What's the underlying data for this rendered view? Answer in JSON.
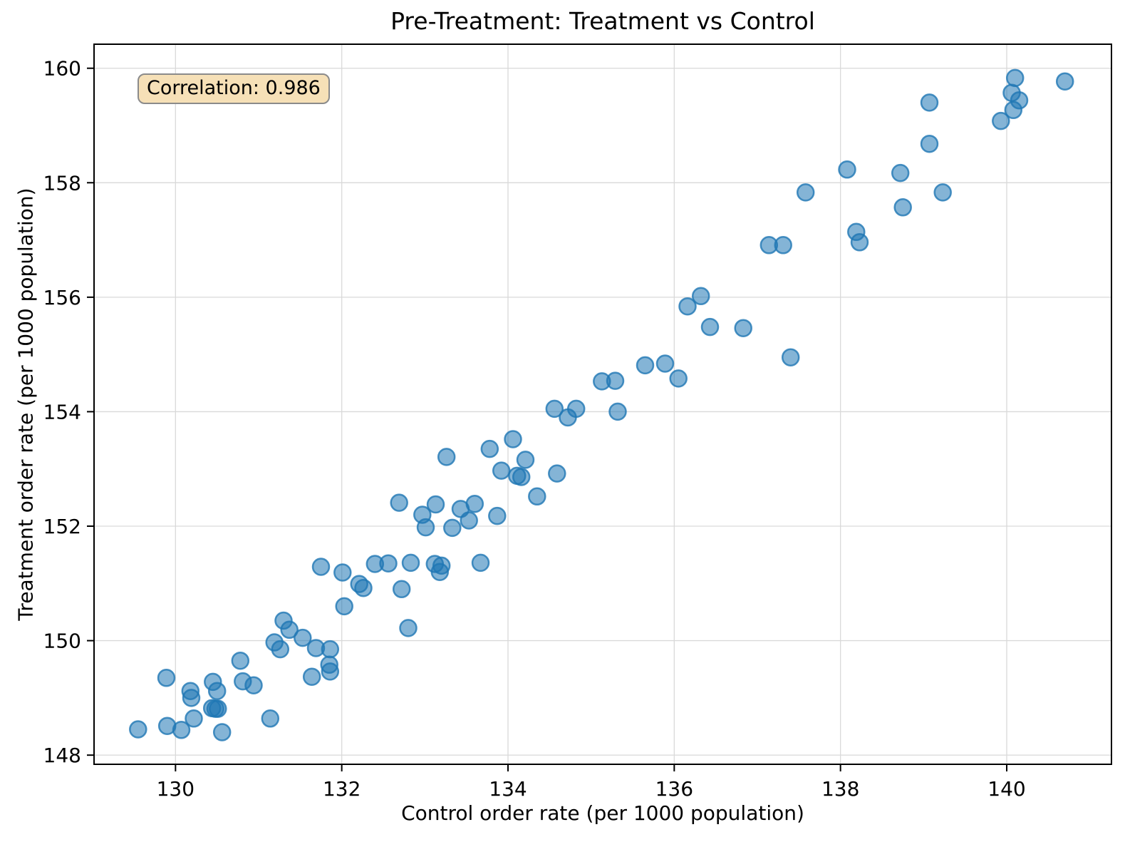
{
  "chart_data": {
    "type": "scatter",
    "title": "Pre-Treatment: Treatment vs Control",
    "xlabel": "Control order rate (per 1000 population)",
    "ylabel": "Treatment order rate (per 1000 population)",
    "xlim": [
      129.02,
      141.26
    ],
    "ylim": [
      147.84,
      160.42
    ],
    "xticks": [
      130,
      132,
      134,
      136,
      138,
      140
    ],
    "yticks": [
      148,
      150,
      152,
      154,
      156,
      158,
      160
    ],
    "grid": true,
    "legend": null,
    "annotation": {
      "text": "Correlation: 0.986",
      "value": 0.986
    },
    "style": {
      "point_color": "#1f77b4",
      "point_fill_opacity": 0.55,
      "point_edge_opacity": 0.8,
      "point_radius_px": 11.5,
      "grid_color": "#d9d9d9",
      "spine_color": "#000000",
      "annotation_bg": "#f5deb3",
      "annotation_border": "#8b8b8b"
    },
    "points": [
      [
        140.1,
        159.83
      ],
      [
        140.7,
        159.77
      ],
      [
        140.06,
        159.57
      ],
      [
        140.15,
        159.44
      ],
      [
        140.08,
        159.27
      ],
      [
        139.93,
        159.08
      ],
      [
        139.07,
        159.4
      ],
      [
        139.07,
        158.68
      ],
      [
        138.08,
        158.23
      ],
      [
        138.72,
        158.17
      ],
      [
        137.58,
        157.83
      ],
      [
        139.23,
        157.83
      ],
      [
        138.75,
        157.57
      ],
      [
        138.19,
        157.14
      ],
      [
        138.23,
        156.96
      ],
      [
        137.14,
        156.91
      ],
      [
        137.31,
        156.91
      ],
      [
        136.32,
        156.02
      ],
      [
        136.16,
        155.84
      ],
      [
        136.43,
        155.48
      ],
      [
        136.83,
        155.46
      ],
      [
        137.4,
        154.95
      ],
      [
        135.65,
        154.81
      ],
      [
        135.89,
        154.84
      ],
      [
        136.05,
        154.58
      ],
      [
        135.13,
        154.53
      ],
      [
        135.29,
        154.54
      ],
      [
        134.56,
        154.05
      ],
      [
        134.82,
        154.05
      ],
      [
        134.72,
        153.9
      ],
      [
        135.32,
        154.0
      ],
      [
        134.06,
        153.52
      ],
      [
        133.78,
        153.35
      ],
      [
        133.26,
        153.21
      ],
      [
        134.21,
        153.16
      ],
      [
        133.92,
        152.97
      ],
      [
        134.11,
        152.88
      ],
      [
        134.16,
        152.86
      ],
      [
        134.59,
        152.92
      ],
      [
        134.35,
        152.52
      ],
      [
        132.69,
        152.41
      ],
      [
        133.13,
        152.38
      ],
      [
        132.97,
        152.2
      ],
      [
        133.43,
        152.3
      ],
      [
        133.6,
        152.39
      ],
      [
        133.53,
        152.1
      ],
      [
        133.01,
        151.98
      ],
      [
        133.33,
        151.97
      ],
      [
        133.87,
        152.18
      ],
      [
        131.75,
        151.29
      ],
      [
        132.01,
        151.19
      ],
      [
        132.21,
        150.99
      ],
      [
        132.26,
        150.92
      ],
      [
        132.4,
        151.34
      ],
      [
        132.56,
        151.35
      ],
      [
        132.83,
        151.36
      ],
      [
        133.12,
        151.34
      ],
      [
        133.2,
        151.31
      ],
      [
        133.18,
        151.2
      ],
      [
        133.67,
        151.36
      ],
      [
        132.72,
        150.9
      ],
      [
        132.03,
        150.6
      ],
      [
        132.8,
        150.22
      ],
      [
        131.3,
        150.35
      ],
      [
        131.37,
        150.19
      ],
      [
        131.19,
        149.97
      ],
      [
        131.26,
        149.85
      ],
      [
        131.53,
        150.05
      ],
      [
        131.69,
        149.87
      ],
      [
        131.86,
        149.85
      ],
      [
        131.85,
        149.58
      ],
      [
        131.86,
        149.46
      ],
      [
        131.64,
        149.37
      ],
      [
        130.78,
        149.65
      ],
      [
        129.89,
        149.35
      ],
      [
        130.45,
        149.28
      ],
      [
        130.81,
        149.29
      ],
      [
        130.94,
        149.22
      ],
      [
        130.18,
        149.12
      ],
      [
        130.19,
        149.0
      ],
      [
        130.5,
        149.12
      ],
      [
        130.44,
        148.82
      ],
      [
        130.48,
        148.81
      ],
      [
        130.51,
        148.81
      ],
      [
        130.22,
        148.64
      ],
      [
        131.14,
        148.64
      ],
      [
        129.9,
        148.51
      ],
      [
        130.07,
        148.44
      ],
      [
        130.56,
        148.4
      ],
      [
        129.55,
        148.45
      ]
    ]
  }
}
